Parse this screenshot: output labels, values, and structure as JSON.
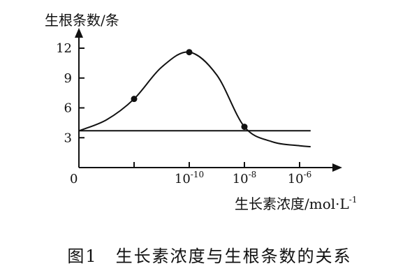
{
  "chart_data": {
    "type": "line",
    "caption": "图1　生长素浓度与生根条数的关系",
    "ylabel": "生根条数/条",
    "xlabel_main": "生长素浓度/mol·L",
    "xlabel_sup": "-1",
    "origin_label": "0",
    "ylim": [
      0,
      12
    ],
    "yticks": [
      3,
      6,
      9,
      12
    ],
    "x_ticks": [
      {
        "base": "10",
        "exp": "-10"
      },
      {
        "base": "10",
        "exp": "-8"
      },
      {
        "base": "10",
        "exp": "-6"
      }
    ],
    "series": [
      {
        "type": "curve",
        "x": [
          0,
          0.5,
          1,
          1.5,
          2,
          2.5,
          3,
          3.5,
          4,
          4.2
        ],
        "y": [
          3.7,
          4.8,
          6.9,
          10.1,
          11.6,
          9.3,
          4.1,
          2.6,
          2.2,
          2.1
        ]
      },
      {
        "type": "reference",
        "x": [
          0,
          4.2
        ],
        "y": [
          3.7,
          3.7
        ]
      }
    ],
    "points": [
      {
        "x": 1,
        "y": 6.9
      },
      {
        "x": 2,
        "y": 11.6
      },
      {
        "x": 3,
        "y": 4.1
      }
    ]
  }
}
